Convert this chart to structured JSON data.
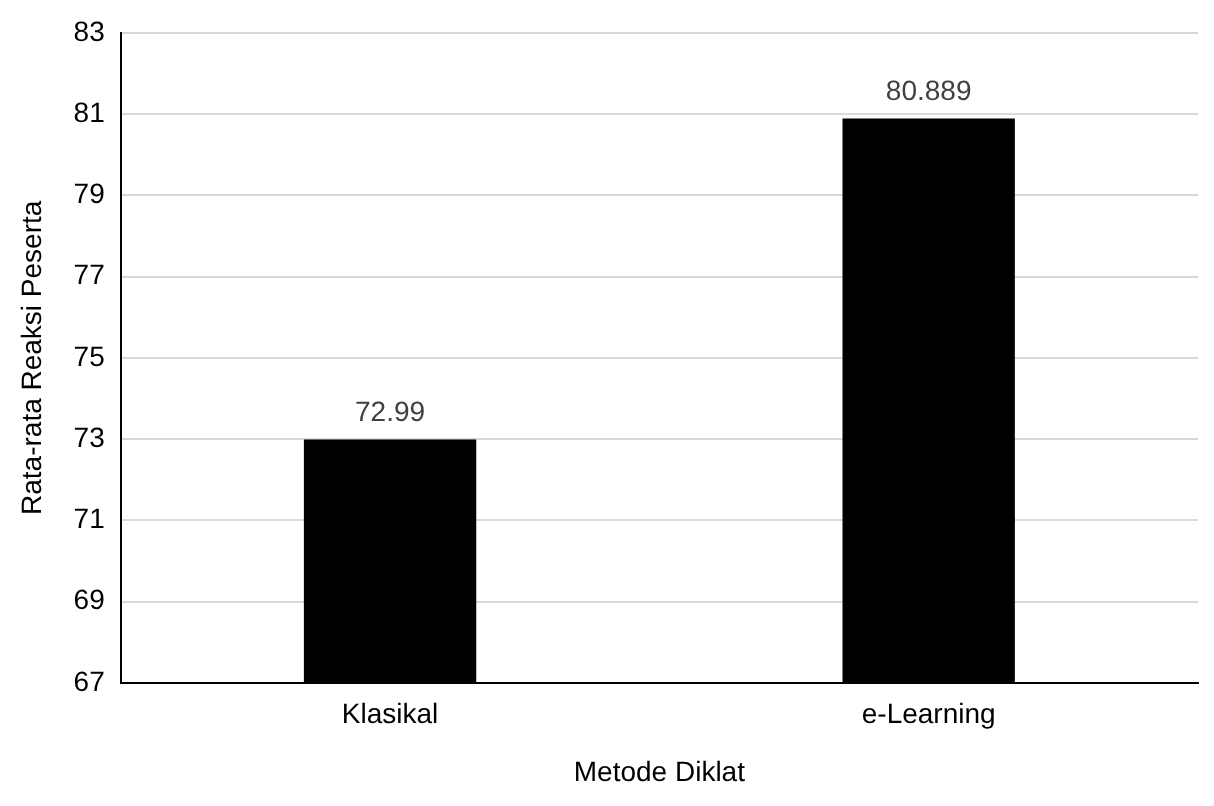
{
  "chart_data": {
    "type": "bar",
    "xlabel": "Metode Diklat",
    "ylabel": "Rata-rata Reaksi Peserta",
    "categories": [
      "Klasikal",
      "e-Learning"
    ],
    "values": [
      72.99,
      80.889
    ],
    "color": "#000000",
    "ylim": [
      67,
      83
    ],
    "yticks": [
      67,
      69,
      71,
      73,
      75,
      77,
      79,
      81,
      83
    ],
    "grid": "y",
    "data_labels": true,
    "legend": false
  }
}
